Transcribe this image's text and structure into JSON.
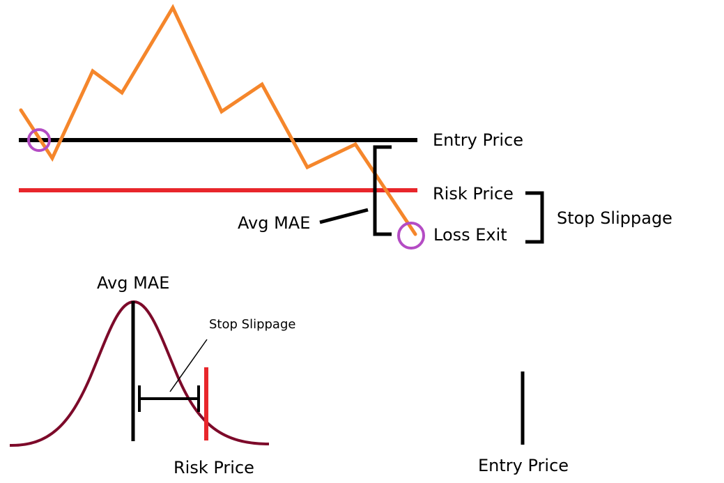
{
  "labels": {
    "entry_price_top": "Entry Price",
    "risk_price_top": "Risk Price",
    "loss_exit": "Loss Exit",
    "avg_mae_top": "Avg MAE",
    "stop_slippage_right": "Stop Slippage",
    "avg_mae_bottom": "Avg MAE",
    "stop_slippage_bottom": "Stop Slippage",
    "risk_price_bottom": "Risk Price",
    "entry_price_bottom": "Entry Price"
  },
  "colors": {
    "price_path": "#f5862b",
    "entry_line": "#000000",
    "risk_line": "#e8262b",
    "marker_circle": "#b44cc4",
    "distribution_curve": "#7d0a2a",
    "annotation": "#000000"
  }
}
